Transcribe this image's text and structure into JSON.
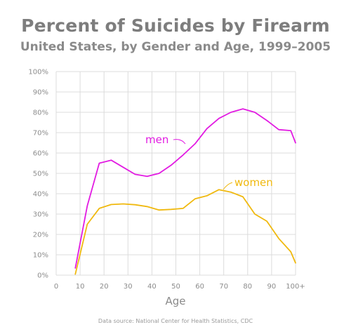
{
  "chart_data": {
    "type": "line",
    "title": "Percent of Suicides by Firearm",
    "subtitle": "United States, by Gender and Age, 1999–2005",
    "xlabel": "Age",
    "ylabel": "",
    "xlim": [
      0,
      100
    ],
    "ylim": [
      0,
      100
    ],
    "x_ticks": [
      "0",
      "10",
      "20",
      "30",
      "40",
      "50",
      "60",
      "70",
      "80",
      "90",
      "100+"
    ],
    "y_ticks": [
      "0%",
      "10%",
      "20%",
      "30%",
      "40%",
      "50%",
      "60%",
      "70%",
      "80%",
      "90%",
      "100%"
    ],
    "grid": true,
    "source": "Data source: National Center for Health Statistics, CDC",
    "series": [
      {
        "name": "men",
        "color": "#e21be2",
        "x": [
          8,
          13,
          18,
          23,
          28,
          33,
          38,
          43,
          48,
          53,
          58,
          63,
          68,
          73,
          78,
          83,
          88,
          93,
          98,
          100
        ],
        "y": [
          3.5,
          34,
          55,
          56.5,
          53,
          49.5,
          48.5,
          50,
          54,
          59,
          64.5,
          72,
          77,
          80,
          81.7,
          80,
          76,
          71.5,
          71,
          65
        ]
      },
      {
        "name": "women",
        "color": "#f0b90f",
        "x": [
          8,
          13,
          18,
          23,
          28,
          33,
          38,
          43,
          48,
          53,
          58,
          63,
          68,
          73,
          78,
          83,
          88,
          93,
          98,
          100
        ],
        "y": [
          0.5,
          25,
          32.8,
          34.7,
          35,
          34.6,
          33.7,
          32,
          32.3,
          32.8,
          37.5,
          39,
          42,
          40.8,
          38.5,
          30,
          26.5,
          18,
          11.5,
          6
        ]
      }
    ]
  }
}
